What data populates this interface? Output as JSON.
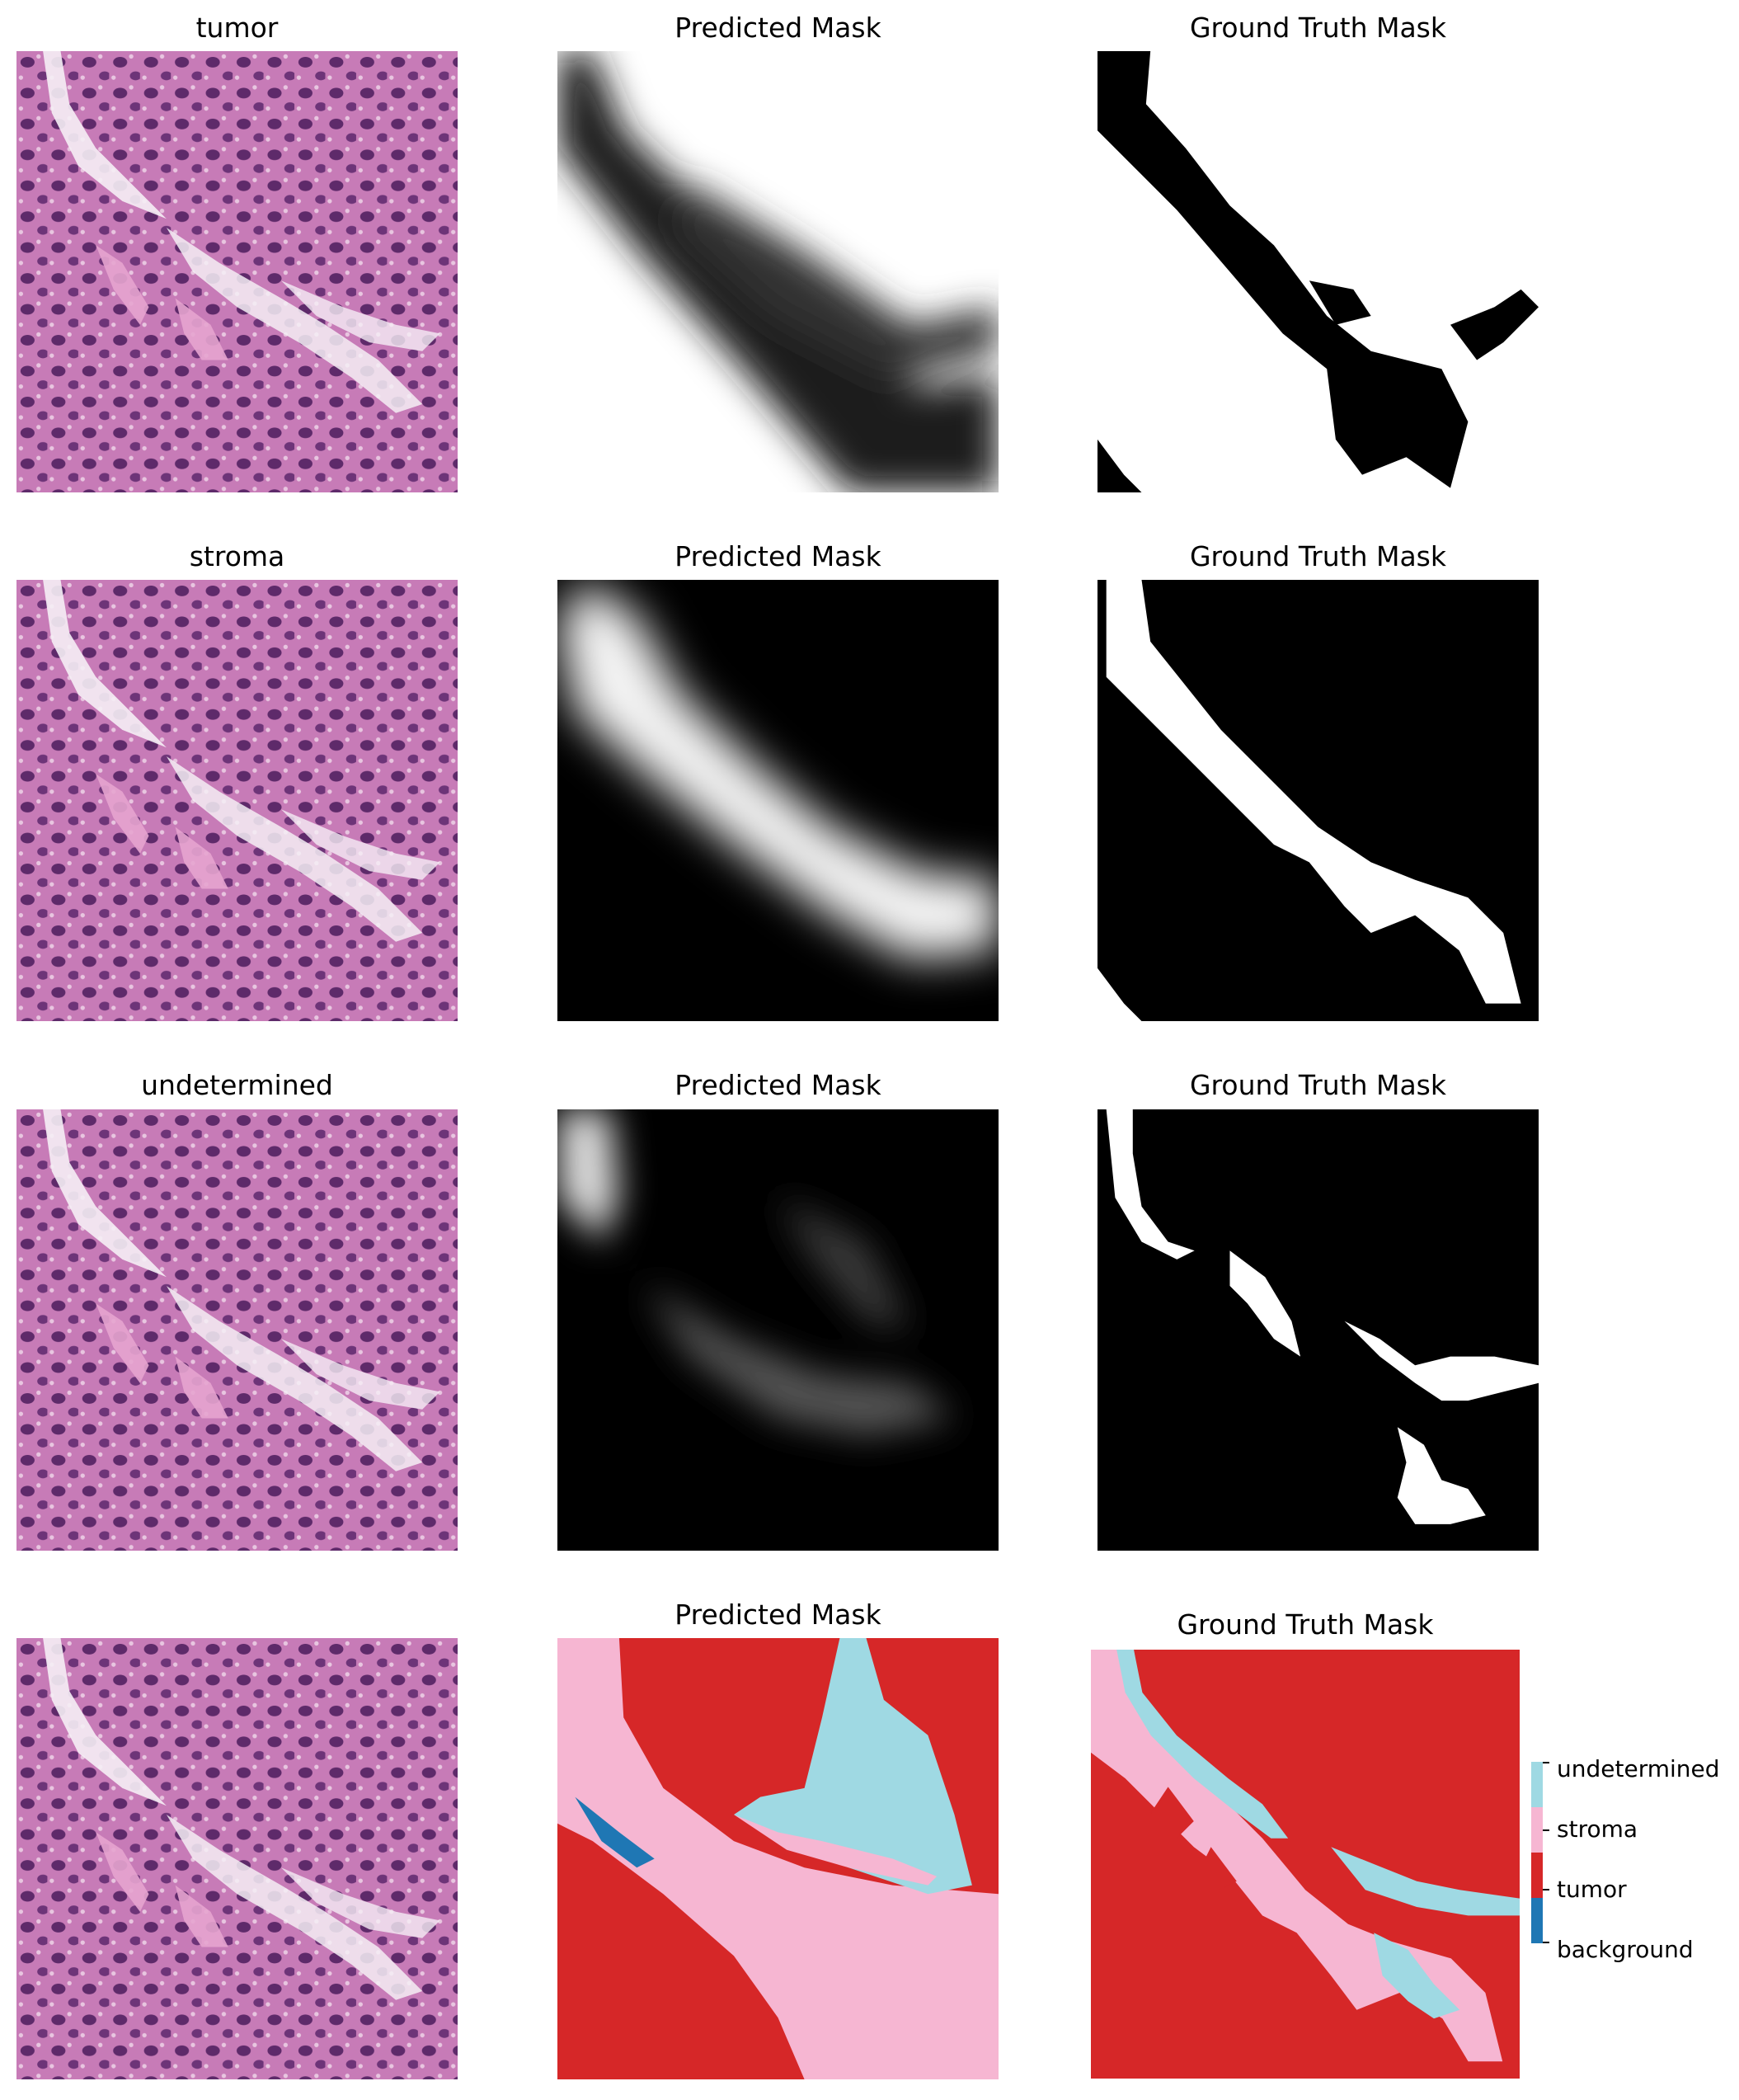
{
  "rows": [
    {
      "image_title": "tumor",
      "pred_title": "Predicted Mask",
      "gt_title": "Ground Truth Mask"
    },
    {
      "image_title": "stroma",
      "pred_title": "Predicted Mask",
      "gt_title": "Ground Truth Mask"
    },
    {
      "image_title": "undetermined",
      "pred_title": "Predicted Mask",
      "gt_title": "Ground Truth Mask"
    },
    {
      "image_title": "",
      "pred_title": "Predicted Mask",
      "gt_title": "Ground Truth Mask"
    }
  ],
  "colorbar": {
    "labels": [
      "undetermined",
      "stroma",
      "tumor",
      "background"
    ],
    "colors": [
      "#9fd9e3",
      "#f6b6d2",
      "#d62728",
      "#1f77b4"
    ]
  },
  "colors": {
    "tissue_base": "#c77bb7",
    "nuclei": "#5e2a6a",
    "stroma_white": "#f5eef5"
  }
}
